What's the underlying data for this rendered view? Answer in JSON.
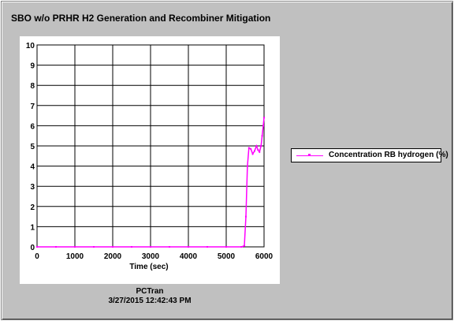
{
  "window": {
    "footer_app": "PCTran",
    "footer_timestamp": "3/27/2015 12:42:43 PM"
  },
  "chart_data": {
    "type": "line",
    "title": "SBO w/o PRHR H2 Generation and Recombiner Mitigation",
    "xlabel": "Time (sec)",
    "ylabel": "",
    "xlim": [
      0,
      6000
    ],
    "ylim": [
      0,
      10
    ],
    "xticks": [
      0,
      1000,
      2000,
      3000,
      4000,
      5000,
      6000
    ],
    "yticks": [
      0,
      1,
      2,
      3,
      4,
      5,
      6,
      7,
      8,
      9,
      10
    ],
    "grid": true,
    "legend_position": "right",
    "series": [
      {
        "name": "Concentration RB hydrogen (%)",
        "color": "#ff00ff",
        "points": [
          [
            0,
            0
          ],
          [
            500,
            0
          ],
          [
            1000,
            0
          ],
          [
            1500,
            0
          ],
          [
            2000,
            0
          ],
          [
            2500,
            0
          ],
          [
            3000,
            0
          ],
          [
            3500,
            0
          ],
          [
            4000,
            0
          ],
          [
            4500,
            0
          ],
          [
            5000,
            0
          ],
          [
            5400,
            0
          ],
          [
            5480,
            0.05
          ],
          [
            5520,
            1.5
          ],
          [
            5560,
            4.0
          ],
          [
            5600,
            4.9
          ],
          [
            5650,
            4.85
          ],
          [
            5700,
            4.6
          ],
          [
            5750,
            4.75
          ],
          [
            5800,
            5.0
          ],
          [
            5840,
            4.8
          ],
          [
            5880,
            4.7
          ],
          [
            5920,
            5.0
          ],
          [
            5950,
            5.5
          ],
          [
            5980,
            6.0
          ],
          [
            6000,
            6.4
          ]
        ]
      }
    ]
  }
}
